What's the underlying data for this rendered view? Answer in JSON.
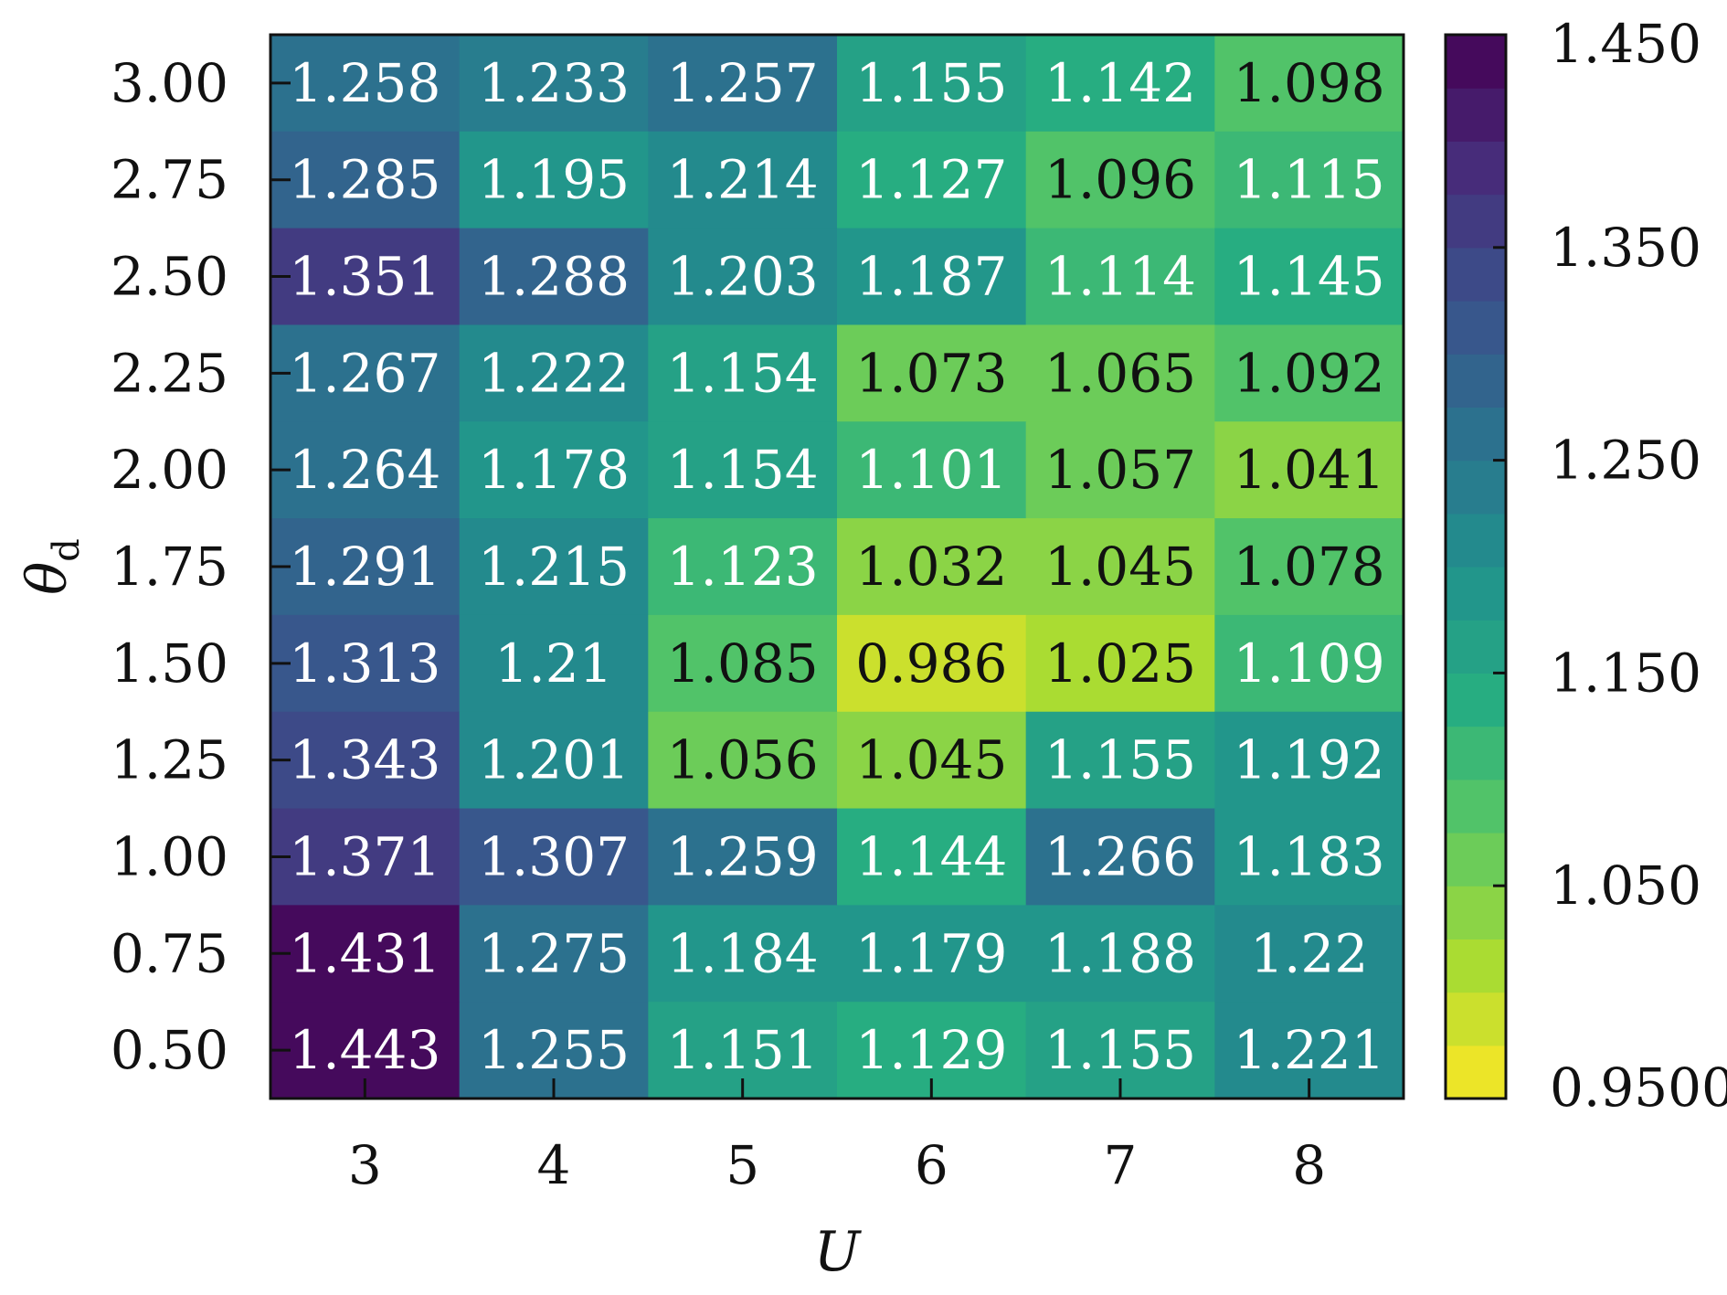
{
  "chart_data": {
    "type": "heatmap",
    "title": "",
    "xlabel": "U",
    "ylabel": "θ",
    "ylabel_subscript": "d",
    "x": [
      "3",
      "4",
      "5",
      "6",
      "7",
      "8"
    ],
    "y": [
      "3.00",
      "2.75",
      "2.50",
      "2.25",
      "2.00",
      "1.75",
      "1.50",
      "1.25",
      "1.00",
      "0.75",
      "0.50"
    ],
    "values": [
      [
        1.258,
        1.233,
        1.257,
        1.155,
        1.142,
        1.098
      ],
      [
        1.285,
        1.195,
        1.214,
        1.127,
        1.096,
        1.115
      ],
      [
        1.351,
        1.288,
        1.203,
        1.187,
        1.114,
        1.145
      ],
      [
        1.267,
        1.222,
        1.154,
        1.073,
        1.065,
        1.092
      ],
      [
        1.264,
        1.178,
        1.154,
        1.101,
        1.057,
        1.041
      ],
      [
        1.291,
        1.215,
        1.123,
        1.032,
        1.045,
        1.078
      ],
      [
        1.313,
        1.21,
        1.085,
        0.986,
        1.025,
        1.109
      ],
      [
        1.343,
        1.201,
        1.056,
        1.045,
        1.155,
        1.192
      ],
      [
        1.371,
        1.307,
        1.259,
        1.144,
        1.266,
        1.183
      ],
      [
        1.431,
        1.275,
        1.184,
        1.179,
        1.188,
        1.22
      ],
      [
        1.443,
        1.255,
        1.151,
        1.129,
        1.155,
        1.221
      ]
    ],
    "cell_labels": [
      [
        "1.258",
        "1.233",
        "1.257",
        "1.155",
        "1.142",
        "1.098"
      ],
      [
        "1.285",
        "1.195",
        "1.214",
        "1.127",
        "1.096",
        "1.115"
      ],
      [
        "1.351",
        "1.288",
        "1.203",
        "1.187",
        "1.114",
        "1.145"
      ],
      [
        "1.267",
        "1.222",
        "1.154",
        "1.073",
        "1.065",
        "1.092"
      ],
      [
        "1.264",
        "1.178",
        "1.154",
        "1.101",
        "1.057",
        "1.041"
      ],
      [
        "1.291",
        "1.215",
        "1.123",
        "1.032",
        "1.045",
        "1.078"
      ],
      [
        "1.313",
        "1.21",
        "1.085",
        "0.986",
        "1.025",
        "1.109"
      ],
      [
        "1.343",
        "1.201",
        "1.056",
        "1.045",
        "1.155",
        "1.192"
      ],
      [
        "1.371",
        "1.307",
        "1.259",
        "1.144",
        "1.266",
        "1.183"
      ],
      [
        "1.431",
        "1.275",
        "1.184",
        "1.179",
        "1.188",
        "1.22"
      ],
      [
        "1.443",
        "1.255",
        "1.151",
        "1.129",
        "1.155",
        "1.221"
      ]
    ],
    "colorbar": {
      "min": 0.95,
      "max": 1.45,
      "levels": 20,
      "tick_values": [
        0.95,
        1.05,
        1.15,
        1.25,
        1.35,
        1.45
      ],
      "tick_labels": [
        "0.9500",
        "1.050",
        "1.150",
        "1.250",
        "1.350",
        "1.450"
      ]
    },
    "colormap": "viridis_r",
    "colors": {
      "text_light": "#ffffff",
      "text_dark": "#111111",
      "frame": "#111111"
    }
  }
}
